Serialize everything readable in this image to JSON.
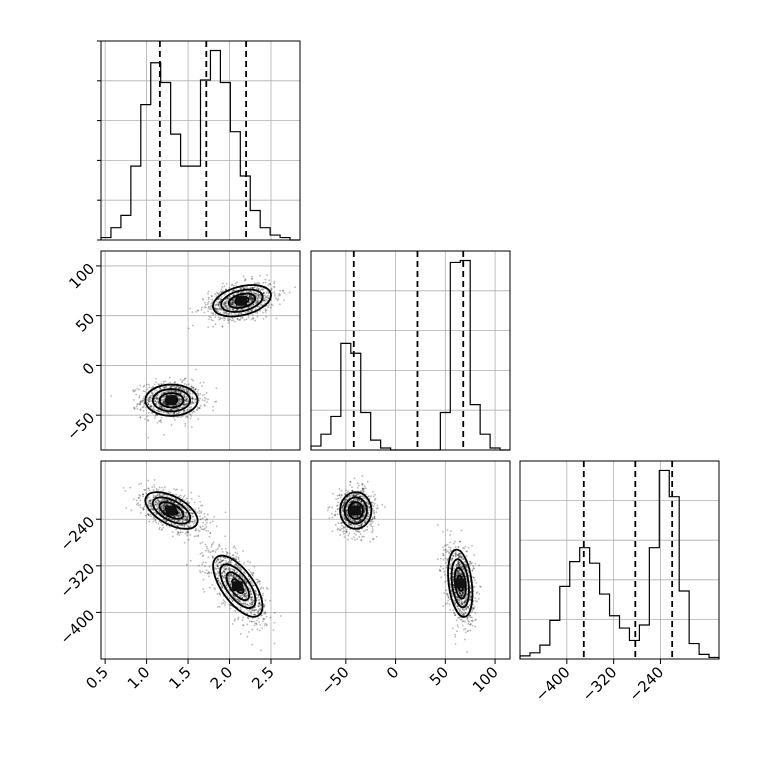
{
  "chart_data": {
    "type": "corner",
    "parameters": [
      "p0",
      "p1",
      "p2"
    ],
    "ranges": {
      "p0": [
        0.45,
        2.85
      ],
      "p1": [
        -85,
        115
      ],
      "p2": [
        -480,
        -140
      ]
    },
    "ticks": {
      "p0": {
        "values": [
          0.5,
          1.0,
          1.5,
          2.0,
          2.5
        ],
        "labels": [
          "0.5",
          "1.0",
          "1.5",
          "2.0",
          "2.5"
        ]
      },
      "p1_x": {
        "values": [
          -50,
          0,
          50,
          100
        ],
        "labels": [
          "−50",
          "0",
          "50",
          "100"
        ]
      },
      "p1_y": {
        "values": [
          -50,
          0,
          50,
          100
        ],
        "labels": [
          "−50",
          "0",
          "50",
          "100"
        ]
      },
      "p2_y": {
        "values": [
          -400,
          -320,
          -240
        ],
        "labels": [
          "−400",
          "−320",
          "−240"
        ]
      },
      "p2_x": {
        "values": [
          -400,
          -320,
          -240
        ],
        "labels": [
          "−400",
          "−320",
          "−240"
        ]
      }
    },
    "histograms": [
      {
        "param": "p0",
        "edges": [
          0.45,
          0.57,
          0.69,
          0.81,
          0.93,
          1.05,
          1.17,
          1.29,
          1.41,
          1.53,
          1.65,
          1.77,
          1.89,
          2.01,
          2.13,
          2.25,
          2.37,
          2.49,
          2.61,
          2.73,
          2.85
        ],
        "counts": [
          0.01,
          0.05,
          0.1,
          0.3,
          0.55,
          0.72,
          0.64,
          0.43,
          0.3,
          0.3,
          0.65,
          0.77,
          0.64,
          0.44,
          0.26,
          0.12,
          0.05,
          0.02,
          0.01,
          0.0
        ],
        "quantiles": [
          1.16,
          1.72,
          2.2
        ]
      },
      {
        "param": "p1",
        "edges": [
          -85,
          -75,
          -65,
          -55,
          -45,
          -35,
          -25,
          -15,
          -5,
          5,
          15,
          25,
          35,
          45,
          55,
          65,
          75,
          85,
          95,
          105,
          115
        ],
        "counts": [
          0.02,
          0.08,
          0.17,
          0.54,
          0.49,
          0.19,
          0.05,
          0.01,
          0.0,
          0.0,
          0.0,
          0.0,
          0.0,
          0.19,
          0.95,
          0.96,
          0.23,
          0.08,
          0.01,
          0.0
        ],
        "quantiles": [
          -42,
          22,
          68
        ]
      },
      {
        "param": "p2",
        "edges": [
          -480,
          -463,
          -446,
          -429,
          -412,
          -395,
          -378,
          -361,
          -344,
          -327,
          -310,
          -293,
          -276,
          -259,
          -242,
          -225,
          -208,
          -191,
          -174,
          -157,
          -140
        ],
        "counts": [
          0.02,
          0.04,
          0.09,
          0.25,
          0.47,
          0.63,
          0.72,
          0.62,
          0.42,
          0.28,
          0.2,
          0.12,
          0.22,
          0.72,
          1.22,
          1.05,
          0.44,
          0.1,
          0.03,
          0.01
        ],
        "quantiles": [
          -371,
          -283,
          -220
        ]
      }
    ],
    "scatter_pairs": [
      {
        "x": "p0",
        "y": "p1",
        "clusters": [
          {
            "center": [
              1.3,
              -35
            ],
            "sd": [
              0.18,
              9
            ],
            "corr": 0.0,
            "n": 950
          },
          {
            "center": [
              2.15,
              65
            ],
            "sd": [
              0.2,
              9
            ],
            "corr": 0.35,
            "n": 950
          }
        ]
      },
      {
        "x": "p0",
        "y": "p2",
        "clusters": [
          {
            "center": [
              1.3,
              -225
            ],
            "sd": [
              0.18,
              18
            ],
            "corr": -0.55,
            "n": 950
          },
          {
            "center": [
              2.1,
              -355
            ],
            "sd": [
              0.17,
              30
            ],
            "corr": -0.65,
            "n": 950
          }
        ]
      },
      {
        "x": "p1",
        "y": "p2",
        "clusters": [
          {
            "center": [
              -40,
              -225
            ],
            "sd": [
              9,
              18
            ],
            "corr": 0.0,
            "n": 950
          },
          {
            "center": [
              65,
              -350
            ],
            "sd": [
              7,
              33
            ],
            "corr": -0.3,
            "n": 950
          }
        ]
      }
    ],
    "grid": true,
    "title": "",
    "legend": "none"
  }
}
